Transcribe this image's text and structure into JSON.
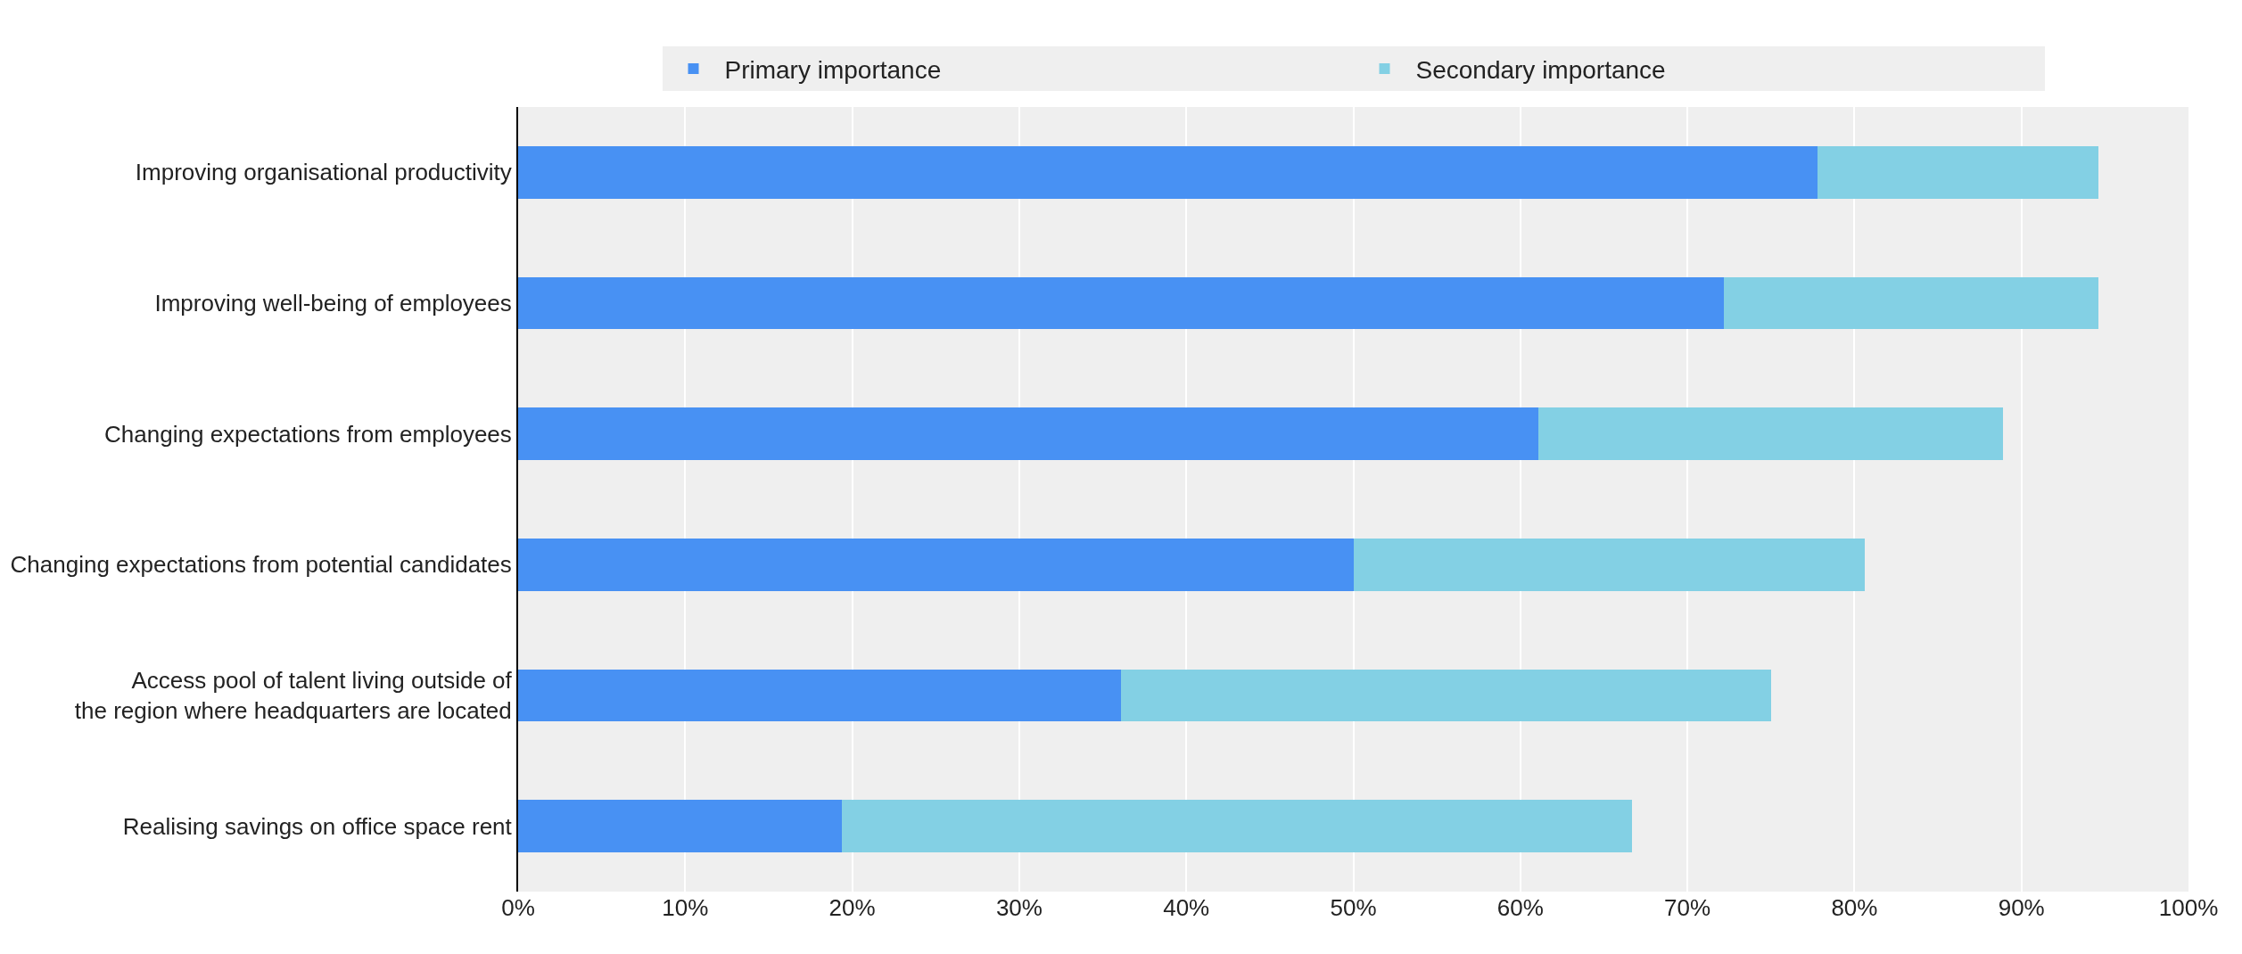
{
  "chart_data": {
    "type": "bar",
    "orientation": "horizontal",
    "stacked": true,
    "categories": [
      "Improving organisational productivity",
      "Improving well-being of employees",
      "Changing expectations from employees",
      "Changing expectations from potential candidates",
      "Access pool of talent living outside of\nthe region where headquarters are located",
      "Realising savings on office space rent"
    ],
    "series": [
      {
        "name": "Primary importance",
        "color": "#4891f3",
        "values": [
          77.8,
          72.2,
          61.1,
          50.0,
          36.1,
          19.4
        ]
      },
      {
        "name": "Secondary importance",
        "color": "#83d0e4",
        "values": [
          16.8,
          22.4,
          27.8,
          30.6,
          38.9,
          47.3
        ]
      }
    ],
    "xlim": [
      0,
      100
    ],
    "xticks": [
      {
        "value": 0,
        "label": "0%"
      },
      {
        "value": 10,
        "label": "10%"
      },
      {
        "value": 20,
        "label": "20%"
      },
      {
        "value": 30,
        "label": "30%"
      },
      {
        "value": 40,
        "label": "40%"
      },
      {
        "value": 50,
        "label": "50%"
      },
      {
        "value": 60,
        "label": "60%"
      },
      {
        "value": 70,
        "label": "70%"
      },
      {
        "value": 80,
        "label": "80%"
      },
      {
        "value": 90,
        "label": "90%"
      },
      {
        "value": 100,
        "label": "100%"
      }
    ],
    "grid": "x",
    "legend": "top"
  }
}
